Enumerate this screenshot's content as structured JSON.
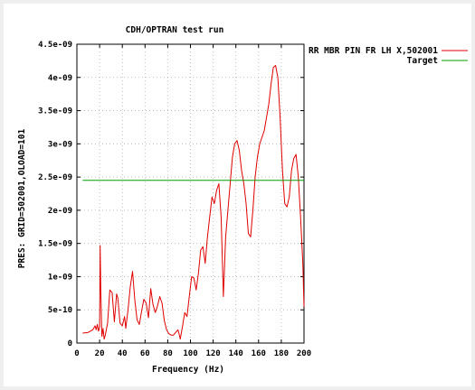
{
  "chart_data": {
    "type": "line",
    "title": "CDH/OPTRAN test run",
    "xlabel": "Frequency (Hz)",
    "ylabel": "PRES: GRID=502001,OLOAD=101",
    "xlim": [
      0,
      200
    ],
    "ylim": [
      0,
      4.5e-09
    ],
    "x_ticks": [
      0,
      20,
      40,
      60,
      80,
      100,
      120,
      140,
      160,
      180,
      200
    ],
    "x_tick_labels": [
      "0",
      "20",
      "40",
      "60",
      "80",
      "100",
      "120",
      "140",
      "160",
      "180",
      "200"
    ],
    "y_ticks": [
      0,
      5e-10,
      1e-09,
      1.5e-09,
      2e-09,
      2.5e-09,
      3e-09,
      3.5e-09,
      4e-09,
      4.5e-09
    ],
    "y_tick_labels": [
      "0",
      "5e-10",
      "1e-09",
      "1.5e-09",
      "2e-09",
      "2.5e-09",
      "3e-09",
      "3.5e-09",
      "4e-09",
      "4.5e-09"
    ],
    "grid": true,
    "legend_position": "outside-right-top",
    "series": [
      {
        "name": "RR MBR PIN FR LH X,502001",
        "color": "#e00000",
        "x": [
          5,
          10,
          14,
          16,
          17,
          18,
          19,
          20,
          20.5,
          21,
          22,
          23,
          24,
          25,
          27,
          29,
          31,
          33,
          35,
          36,
          38,
          40,
          42,
          43,
          45,
          47,
          49,
          51,
          53,
          55,
          57,
          59,
          61,
          63,
          65,
          67,
          69,
          71,
          73,
          75,
          77,
          79,
          81,
          83,
          85,
          87,
          89,
          90,
          91,
          93,
          95,
          97,
          99,
          101,
          103,
          105,
          107,
          109,
          111,
          113,
          115,
          117,
          119,
          121,
          123,
          125,
          127,
          129,
          131,
          133,
          135,
          137,
          139,
          141,
          143,
          145,
          147,
          149,
          151,
          153,
          155,
          157,
          159,
          161,
          163,
          165,
          167,
          169,
          171,
          173,
          175,
          177,
          179,
          181,
          183,
          185,
          187,
          189,
          191,
          193,
          195,
          197,
          199,
          200
        ],
        "y": [
          1.5e-10,
          1.6e-10,
          2e-10,
          2.6e-10,
          2e-10,
          2.8e-10,
          1.8e-10,
          2.4e-10,
          1.47e-09,
          8e-10,
          1e-10,
          2.2e-10,
          6e-11,
          1.2e-10,
          3e-10,
          8e-10,
          7.6e-10,
          3.2e-10,
          7.4e-10,
          6.8e-10,
          3e-10,
          2.6e-10,
          4e-10,
          2.2e-10,
          5e-10,
          8.5e-10,
          1.08e-09,
          6.5e-10,
          3.5e-10,
          2.8e-10,
          4.8e-10,
          6.6e-10,
          6e-10,
          3.8e-10,
          8.2e-10,
          5.8e-10,
          4.6e-10,
          5.6e-10,
          7e-10,
          6e-10,
          3.4e-10,
          2e-10,
          1.4e-10,
          1.2e-10,
          1.2e-10,
          1.6e-10,
          2e-10,
          1.4e-10,
          6e-11,
          2.5e-10,
          4.6e-10,
          4e-10,
          7e-10,
          1e-09,
          9.8e-10,
          8e-10,
          1.05e-09,
          1.4e-09,
          1.45e-09,
          1.2e-09,
          1.6e-09,
          1.9e-09,
          2.2e-09,
          2.1e-09,
          2.3e-09,
          2.4e-09,
          1.9e-09,
          7e-10,
          1.6e-09,
          2e-09,
          2.4e-09,
          2.8e-09,
          3e-09,
          3.05e-09,
          2.9e-09,
          2.6e-09,
          2.4e-09,
          2.1e-09,
          1.65e-09,
          1.6e-09,
          2e-09,
          2.5e-09,
          2.8e-09,
          3e-09,
          3.1e-09,
          3.2e-09,
          3.4e-09,
          3.6e-09,
          3.9e-09,
          4.15e-09,
          4.18e-09,
          4e-09,
          3.4e-09,
          2.6e-09,
          2.1e-09,
          2.05e-09,
          2.2e-09,
          2.6e-09,
          2.78e-09,
          2.84e-09,
          2.5e-09,
          1.9e-09,
          1.2e-09,
          5.5e-10
        ]
      },
      {
        "name": "Target",
        "color": "#00a000",
        "x": [
          5,
          200
        ],
        "y": [
          2.45e-09,
          2.45e-09
        ]
      }
    ]
  }
}
